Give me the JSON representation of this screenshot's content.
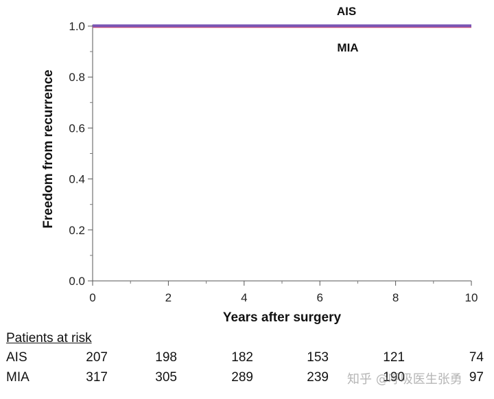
{
  "chart_data": {
    "type": "line",
    "ylabel": "Freedom from recurrence",
    "xlabel": "Years after surgery",
    "xlim": [
      0,
      10
    ],
    "ylim": [
      0,
      1
    ],
    "x_ticks": [
      0,
      2,
      4,
      6,
      8,
      10
    ],
    "x_tick_labels": [
      "0",
      "2",
      "4",
      "6",
      "8",
      "10"
    ],
    "y_ticks": [
      0,
      0.2,
      0.4,
      0.6,
      0.8,
      1.0
    ],
    "y_tick_labels": [
      "0.0",
      "0.2",
      "0.4",
      "0.6",
      "0.8",
      "1.0"
    ],
    "grid": false,
    "series": [
      {
        "name": "AIS",
        "x": [
          0,
          10
        ],
        "y": [
          1.0,
          1.0
        ],
        "color": "#7a55b5"
      },
      {
        "name": "MIA",
        "x": [
          0,
          10
        ],
        "y": [
          1.0,
          1.0
        ],
        "color": "#d64a6e"
      }
    ]
  },
  "risk_table": {
    "title": "Patients at risk",
    "times": [
      0,
      2,
      4,
      6,
      8,
      10
    ],
    "rows": [
      {
        "label": "AIS",
        "values": [
          "207",
          "198",
          "182",
          "153",
          "121",
          "74"
        ]
      },
      {
        "label": "MIA",
        "values": [
          "317",
          "305",
          "289",
          "239",
          "190",
          "97"
        ]
      }
    ]
  },
  "watermark": "知乎 @呼吸医生张勇"
}
